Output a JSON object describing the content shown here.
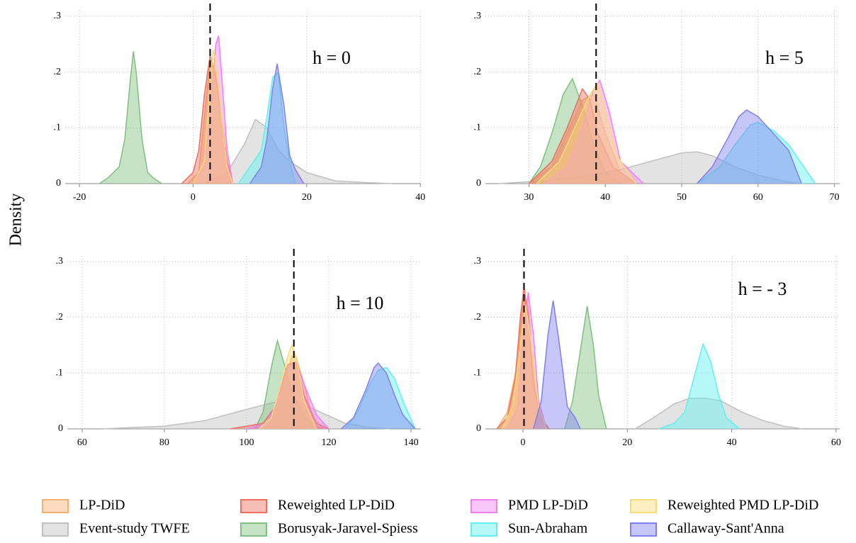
{
  "ylabel": "Density",
  "chart_data": [
    {
      "type": "area",
      "annotation": "h = 0",
      "reference_line": 3,
      "xlim": [
        -22.5,
        40.1
      ],
      "ylim": [
        0,
        0.31
      ],
      "xticks": [
        -20,
        0,
        20,
        40
      ],
      "yticks": [
        0,
        {
          "value": 0.1,
          "label": ".1"
        },
        {
          "value": 0.2,
          "label": ".2"
        },
        {
          "value": 0.3,
          "label": ".3"
        }
      ],
      "grid": true,
      "series": [
        {
          "name": "LP-DiD",
          "color": "#f8b070",
          "x": [
            -1,
            1,
            2,
            3,
            4,
            5,
            6,
            7
          ],
          "values": [
            0,
            0.02,
            0.12,
            0.22,
            0.2,
            0.1,
            0.03,
            0
          ]
        },
        {
          "name": "Reweighted LP-DiD",
          "color": "#f07060",
          "x": [
            -2,
            0,
            1,
            2,
            3,
            4,
            5,
            6,
            7
          ],
          "values": [
            0,
            0.02,
            0.06,
            0.16,
            0.23,
            0.19,
            0.12,
            0.04,
            0
          ]
        },
        {
          "name": "PMD LP-DiD",
          "color": "#f080f0",
          "x": [
            0,
            2,
            3,
            4,
            4.5,
            5,
            6,
            7
          ],
          "values": [
            0,
            0.03,
            0.12,
            0.25,
            0.265,
            0.2,
            0.06,
            0
          ]
        },
        {
          "name": "Reweighted PMD LP-DiD",
          "color": "#f8dc78",
          "x": [
            0,
            2,
            3,
            3.5,
            4,
            5,
            6,
            7
          ],
          "values": [
            0,
            0.04,
            0.18,
            0.24,
            0.22,
            0.12,
            0.03,
            0
          ]
        },
        {
          "name": "Event-study TWFE",
          "color": "#c0c0c0",
          "x": [
            2,
            6,
            9,
            11,
            13,
            15,
            17,
            20,
            25,
            30,
            35
          ],
          "values": [
            0,
            0.02,
            0.07,
            0.115,
            0.1,
            0.06,
            0.04,
            0.02,
            0.005,
            0.002,
            0
          ]
        },
        {
          "name": "Borusyak-Jaravel-Spiess",
          "color": "#80c080",
          "x": [
            -16.5,
            -15,
            -13,
            -12,
            -11,
            -10.5,
            -10,
            -9,
            -8,
            -7,
            -5.5
          ],
          "values": [
            0,
            0.01,
            0.03,
            0.08,
            0.19,
            0.237,
            0.2,
            0.08,
            0.02,
            0.01,
            0
          ]
        },
        {
          "name": "Sun-Abraham",
          "color": "#60f0f0",
          "x": [
            8,
            10,
            12,
            13,
            14,
            15,
            16,
            17,
            18
          ],
          "values": [
            0,
            0.03,
            0.06,
            0.12,
            0.19,
            0.2,
            0.1,
            0.04,
            0
          ]
        },
        {
          "name": "Callaway-Sant'Anna",
          "color": "#8080f0",
          "x": [
            10,
            12,
            13,
            14,
            14.8,
            16,
            17,
            18,
            19.5
          ],
          "values": [
            0,
            0.03,
            0.08,
            0.17,
            0.215,
            0.14,
            0.05,
            0.025,
            0
          ]
        }
      ]
    },
    {
      "type": "area",
      "annotation": "h = 5",
      "reference_line": 38.8,
      "xlim": [
        24.3,
        70.7
      ],
      "ylim": [
        0,
        0.31
      ],
      "xticks": [
        30,
        40,
        50,
        60,
        70
      ],
      "yticks": [
        0,
        {
          "value": 0.1,
          "label": ".1"
        },
        {
          "value": 0.2,
          "label": ".2"
        },
        {
          "value": 0.3,
          "label": ".3"
        }
      ],
      "grid": true,
      "series": [
        {
          "name": "LP-DiD",
          "color": "#f8b070",
          "x": [
            30,
            33,
            35,
            37,
            38.5,
            40,
            42,
            44
          ],
          "values": [
            0,
            0.03,
            0.09,
            0.15,
            0.16,
            0.09,
            0.02,
            0
          ]
        },
        {
          "name": "Reweighted LP-DiD",
          "color": "#f07060",
          "x": [
            30,
            33,
            35,
            37,
            38,
            39,
            41,
            44
          ],
          "values": [
            0,
            0.04,
            0.1,
            0.17,
            0.15,
            0.09,
            0.03,
            0
          ]
        },
        {
          "name": "PMD LP-DiD",
          "color": "#f080f0",
          "x": [
            32,
            35,
            37,
            38.5,
            39.3,
            40.5,
            42,
            45
          ],
          "values": [
            0,
            0.03,
            0.1,
            0.17,
            0.185,
            0.13,
            0.04,
            0
          ]
        },
        {
          "name": "Reweighted PMD LP-DiD",
          "color": "#f8dc78",
          "x": [
            31,
            34,
            36,
            38,
            39,
            40,
            41.5,
            44
          ],
          "values": [
            0,
            0.04,
            0.1,
            0.16,
            0.18,
            0.13,
            0.05,
            0
          ]
        },
        {
          "name": "Event-study TWFE",
          "color": "#c0c0c0",
          "x": [
            26,
            32,
            38,
            42,
            46,
            50,
            52,
            54,
            57,
            60,
            64,
            66
          ],
          "values": [
            0,
            0.005,
            0.015,
            0.025,
            0.04,
            0.055,
            0.057,
            0.05,
            0.03,
            0.015,
            0.003,
            0
          ]
        },
        {
          "name": "Borusyak-Jaravel-Spiess",
          "color": "#80c080",
          "x": [
            30,
            31.5,
            33,
            34.5,
            35.7,
            37,
            38.5,
            40,
            42
          ],
          "values": [
            0,
            0.03,
            0.09,
            0.16,
            0.188,
            0.14,
            0.07,
            0.02,
            0
          ]
        },
        {
          "name": "Sun-Abraham",
          "color": "#60f0f0",
          "x": [
            52,
            55,
            57,
            59,
            60,
            62,
            64,
            66,
            67.5
          ],
          "values": [
            0,
            0.03,
            0.07,
            0.105,
            0.11,
            0.095,
            0.07,
            0.03,
            0
          ]
        },
        {
          "name": "Callaway-Sant'Anna",
          "color": "#8080f0",
          "x": [
            52,
            54,
            56,
            57.5,
            58.5,
            60,
            62,
            64,
            65.7
          ],
          "values": [
            0,
            0.03,
            0.08,
            0.12,
            0.132,
            0.12,
            0.09,
            0.06,
            0
          ]
        }
      ]
    },
    {
      "type": "area",
      "annotation": "h = 10",
      "reference_line": 111.5,
      "xlim": [
        56.4,
        142.4
      ],
      "ylim": [
        0,
        0.31
      ],
      "xticks": [
        60,
        80,
        100,
        120,
        140
      ],
      "yticks": [
        0,
        {
          "value": 0.1,
          "label": ".1"
        },
        {
          "value": 0.2,
          "label": ".2"
        },
        {
          "value": 0.3,
          "label": ".3"
        }
      ],
      "grid": true,
      "series": [
        {
          "name": "LP-DiD",
          "color": "#f8b070",
          "x": [
            104,
            107,
            109,
            111,
            112,
            114,
            116,
            119
          ],
          "values": [
            0,
            0.02,
            0.08,
            0.13,
            0.13,
            0.08,
            0.02,
            0
          ]
        },
        {
          "name": "Reweighted LP-DiD",
          "color": "#f07060",
          "x": [
            96,
            100,
            104,
            107,
            110,
            112,
            114,
            117,
            120
          ],
          "values": [
            0,
            0.005,
            0.01,
            0.04,
            0.115,
            0.12,
            0.06,
            0.01,
            0
          ]
        },
        {
          "name": "PMD LP-DiD",
          "color": "#f080f0",
          "x": [
            100,
            105,
            108,
            110,
            112,
            114,
            117,
            120
          ],
          "values": [
            0,
            0.01,
            0.06,
            0.11,
            0.12,
            0.08,
            0.025,
            0
          ]
        },
        {
          "name": "Reweighted PMD LP-DiD",
          "color": "#f8dc78",
          "x": [
            103,
            106,
            108,
            110,
            111,
            112,
            114,
            117
          ],
          "values": [
            0,
            0.02,
            0.07,
            0.13,
            0.15,
            0.13,
            0.05,
            0
          ]
        },
        {
          "name": "Event-study TWFE",
          "color": "#c0c0c0",
          "x": [
            65,
            80,
            90,
            100,
            108,
            112,
            118,
            124,
            130,
            135
          ],
          "values": [
            0,
            0.005,
            0.015,
            0.035,
            0.05,
            0.05,
            0.03,
            0.01,
            0.002,
            0
          ]
        },
        {
          "name": "Borusyak-Jaravel-Spiess",
          "color": "#80c080",
          "x": [
            102,
            104,
            106,
            107.5,
            109,
            111,
            114,
            118
          ],
          "values": [
            0,
            0.03,
            0.11,
            0.158,
            0.12,
            0.07,
            0.02,
            0
          ]
        },
        {
          "name": "Sun-Abraham",
          "color": "#60f0f0",
          "x": [
            124,
            127,
            130,
            132,
            134,
            136,
            138,
            141
          ],
          "values": [
            0,
            0.03,
            0.08,
            0.105,
            0.11,
            0.09,
            0.05,
            0
          ]
        },
        {
          "name": "Callaway-Sant'Anna",
          "color": "#8080f0",
          "x": [
            123,
            126,
            129,
            131,
            132,
            134,
            136,
            138,
            141
          ],
          "values": [
            0,
            0.02,
            0.07,
            0.11,
            0.118,
            0.1,
            0.06,
            0.025,
            0
          ]
        }
      ]
    },
    {
      "type": "area",
      "annotation": "h = - 3",
      "reference_line": 0.2,
      "xlim": [
        -7.2,
        60.7
      ],
      "ylim": [
        0,
        0.31
      ],
      "xticks": [
        0,
        20,
        40,
        60
      ],
      "yticks": [
        0,
        {
          "value": 0.1,
          "label": ".1"
        },
        {
          "value": 0.2,
          "label": ".2"
        },
        {
          "value": 0.3,
          "label": ".3"
        }
      ],
      "grid": true,
      "series": [
        {
          "name": "LP-DiD",
          "color": "#f8b070",
          "x": [
            -5,
            -3,
            -1,
            0,
            1,
            2,
            3,
            5
          ],
          "values": [
            0,
            0.03,
            0.12,
            0.23,
            0.22,
            0.1,
            0.02,
            0
          ]
        },
        {
          "name": "Reweighted LP-DiD",
          "color": "#f07060",
          "x": [
            -5,
            -3,
            -1.5,
            -0.5,
            0.2,
            1,
            2,
            3.5,
            5
          ],
          "values": [
            0,
            0.02,
            0.09,
            0.2,
            0.255,
            0.2,
            0.08,
            0.02,
            0
          ]
        },
        {
          "name": "PMD LP-DiD",
          "color": "#f080f0",
          "x": [
            -3,
            -1,
            0,
            1,
            2,
            3,
            4.5
          ],
          "values": [
            0,
            0.04,
            0.16,
            0.245,
            0.17,
            0.05,
            0
          ]
        },
        {
          "name": "Reweighted PMD LP-DiD",
          "color": "#f8dc78",
          "x": [
            -4,
            -2,
            -0.5,
            0.5,
            1.5,
            3,
            4.5
          ],
          "values": [
            0,
            0.04,
            0.15,
            0.22,
            0.16,
            0.04,
            0
          ]
        },
        {
          "name": "Event-study TWFE",
          "color": "#c0c0c0",
          "x": [
            21.5,
            25,
            29,
            32,
            35,
            38,
            42,
            46,
            50,
            53.5
          ],
          "values": [
            0,
            0.02,
            0.045,
            0.055,
            0.055,
            0.05,
            0.03,
            0.015,
            0.005,
            0
          ]
        },
        {
          "name": "Borusyak-Jaravel-Spiess",
          "color": "#80c080",
          "x": [
            8,
            9.5,
            11,
            12.3,
            13.5,
            14.5,
            16
          ],
          "values": [
            0,
            0.05,
            0.14,
            0.22,
            0.15,
            0.06,
            0
          ]
        },
        {
          "name": "Sun-Abraham",
          "color": "#60f0f0",
          "x": [
            26,
            29,
            31,
            33,
            34.5,
            36,
            37.5,
            39,
            41.5
          ],
          "values": [
            0,
            0.01,
            0.03,
            0.1,
            0.152,
            0.12,
            0.06,
            0.02,
            0
          ]
        },
        {
          "name": "Callaway-Sant'Anna",
          "color": "#8080f0",
          "x": [
            2,
            3.5,
            4.8,
            5.8,
            7,
            8.5,
            10,
            11
          ],
          "values": [
            0,
            0.05,
            0.17,
            0.23,
            0.15,
            0.04,
            0.02,
            0
          ]
        }
      ]
    }
  ]
}
